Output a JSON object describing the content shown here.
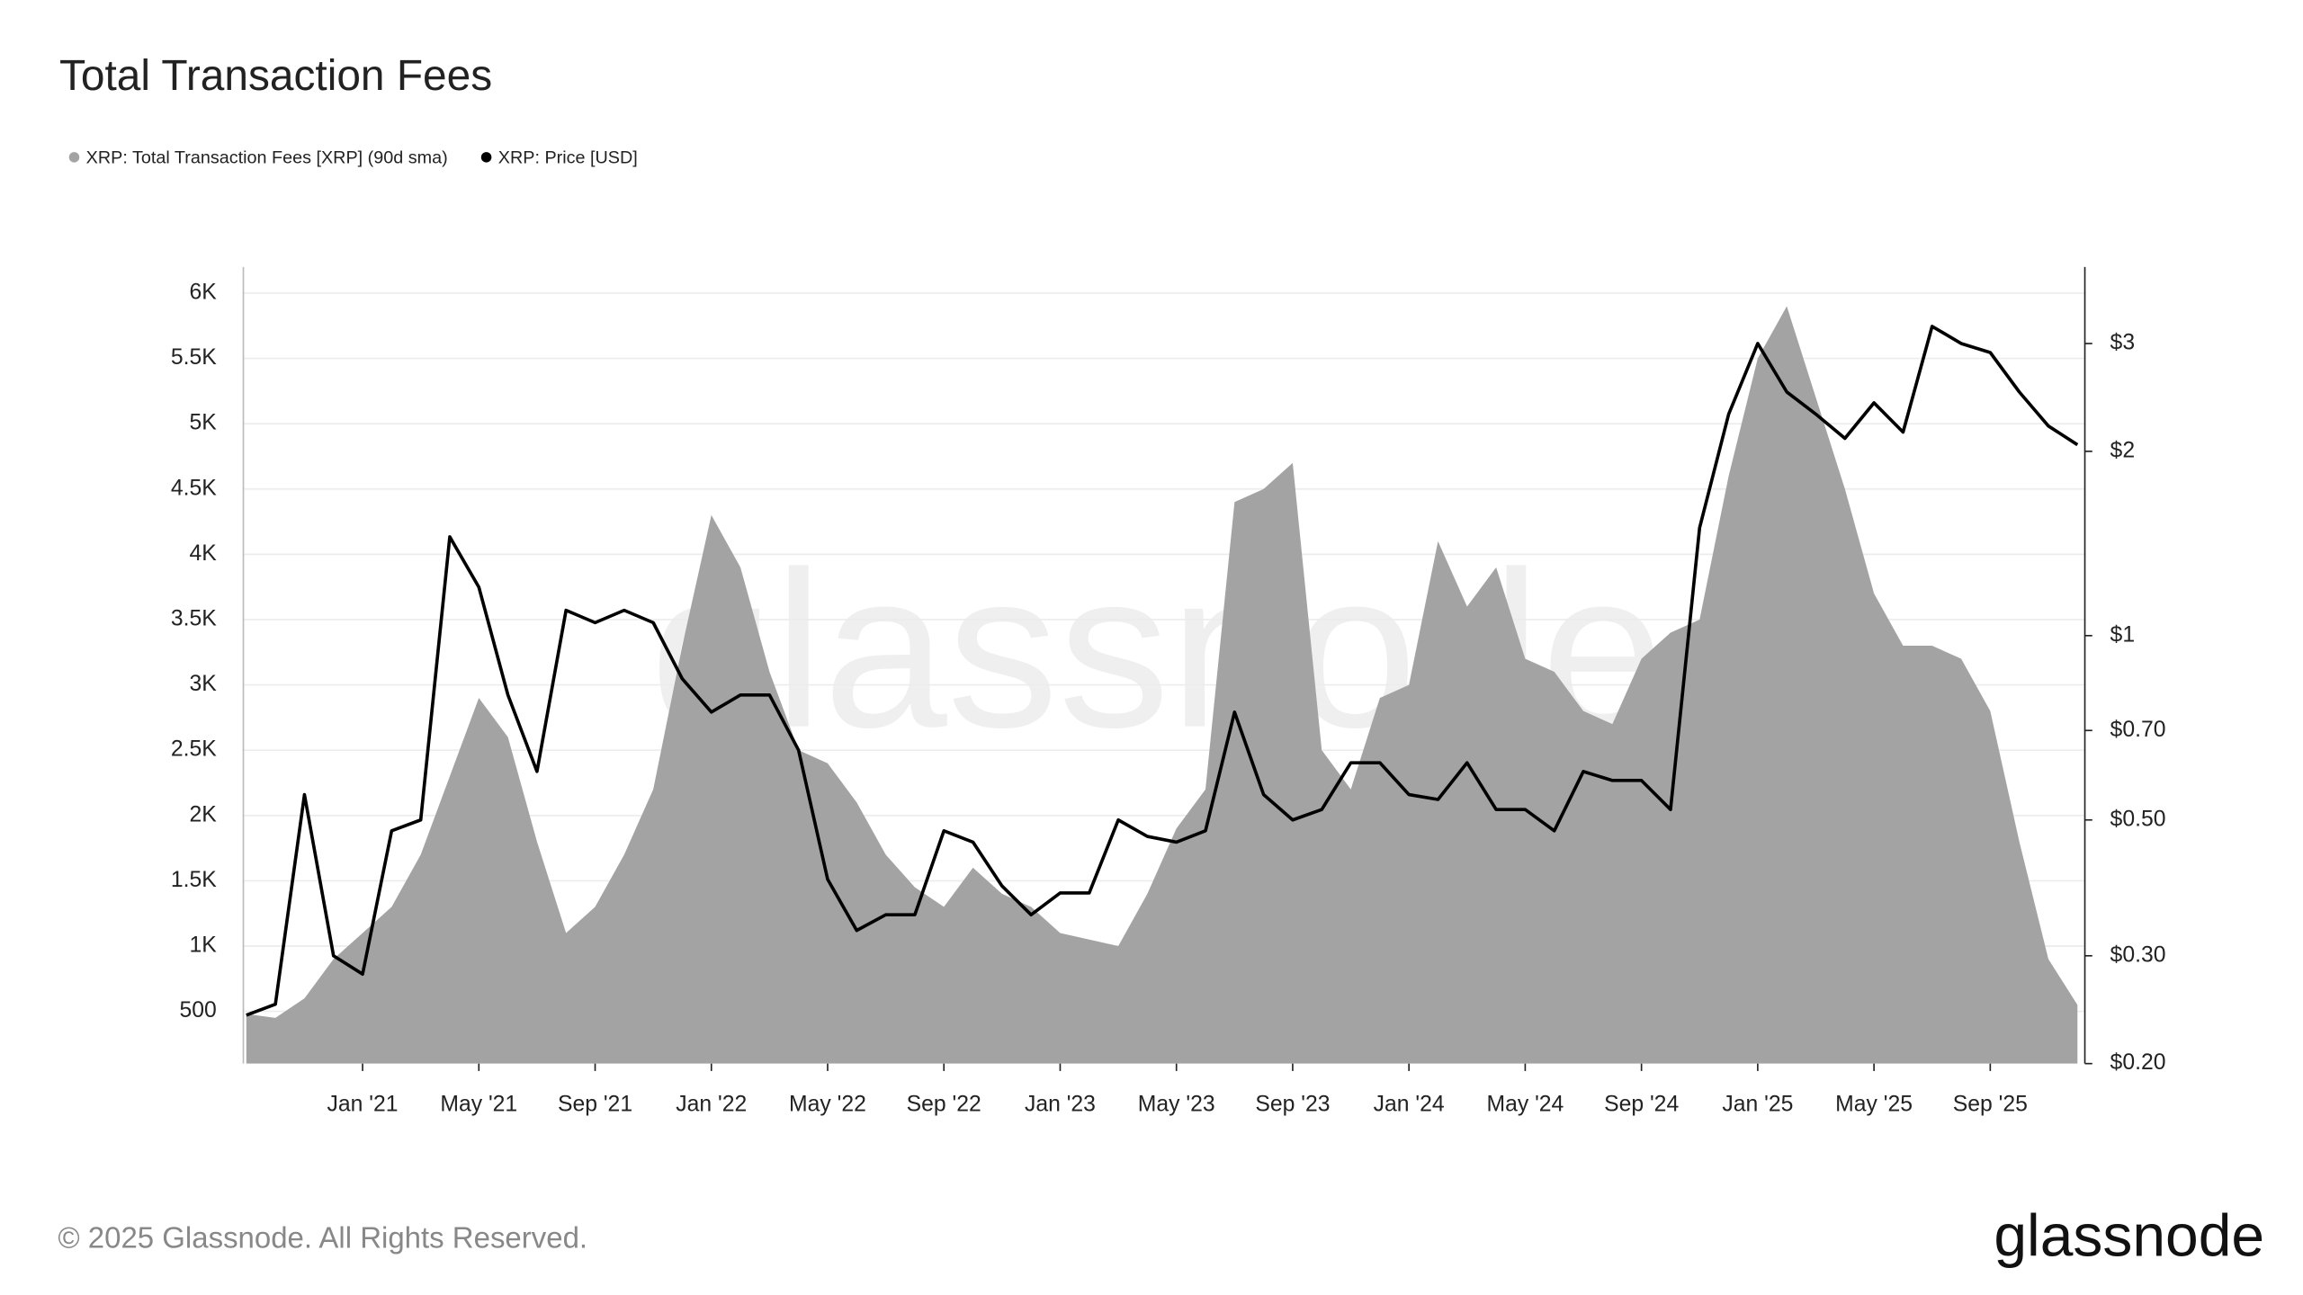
{
  "chart_data": {
    "type": "combo",
    "title": "Total Transaction Fees",
    "watermark": "glassnode",
    "footer": "© 2025 Glassnode. All Rights Reserved.",
    "logo": "glassnode",
    "x": [
      "2020-09",
      "2020-10",
      "2020-11",
      "2020-12",
      "2021-01",
      "2021-02",
      "2021-03",
      "2021-04",
      "2021-05",
      "2021-06",
      "2021-07",
      "2021-08",
      "2021-09",
      "2021-10",
      "2021-11",
      "2021-12",
      "2022-01",
      "2022-02",
      "2022-03",
      "2022-04",
      "2022-05",
      "2022-06",
      "2022-07",
      "2022-08",
      "2022-09",
      "2022-10",
      "2022-11",
      "2022-12",
      "2023-01",
      "2023-02",
      "2023-03",
      "2023-04",
      "2023-05",
      "2023-06",
      "2023-07",
      "2023-08",
      "2023-09",
      "2023-10",
      "2023-11",
      "2023-12",
      "2024-01",
      "2024-02",
      "2024-03",
      "2024-04",
      "2024-05",
      "2024-06",
      "2024-07",
      "2024-08",
      "2024-09",
      "2024-10",
      "2024-11",
      "2024-12",
      "2025-01",
      "2025-02",
      "2025-03",
      "2025-04",
      "2025-05",
      "2025-06",
      "2025-07",
      "2025-08",
      "2025-09",
      "2025-10",
      "2025-11",
      "2025-12"
    ],
    "xlim": [
      "2020-09",
      "2025-12"
    ],
    "xticks": [
      {
        "value": "2021-01",
        "label": "Jan '21"
      },
      {
        "value": "2021-05",
        "label": "May '21"
      },
      {
        "value": "2021-09",
        "label": "Sep '21"
      },
      {
        "value": "2022-01",
        "label": "Jan '22"
      },
      {
        "value": "2022-05",
        "label": "May '22"
      },
      {
        "value": "2022-09",
        "label": "Sep '22"
      },
      {
        "value": "2023-01",
        "label": "Jan '23"
      },
      {
        "value": "2023-05",
        "label": "May '23"
      },
      {
        "value": "2023-09",
        "label": "Sep '23"
      },
      {
        "value": "2024-01",
        "label": "Jan '24"
      },
      {
        "value": "2024-05",
        "label": "May '24"
      },
      {
        "value": "2024-09",
        "label": "Sep '24"
      },
      {
        "value": "2025-01",
        "label": "Jan '25"
      },
      {
        "value": "2025-05",
        "label": "May '25"
      },
      {
        "value": "2025-09",
        "label": "Sep '25"
      }
    ],
    "ylim": [
      100,
      6200
    ],
    "yticks": [
      500,
      {
        "value": 1000,
        "label": "1K"
      },
      {
        "value": 1500,
        "label": "1.5K"
      },
      {
        "value": 2000,
        "label": "2K"
      },
      {
        "value": 2500,
        "label": "2.5K"
      },
      {
        "value": 3000,
        "label": "3K"
      },
      {
        "value": 3500,
        "label": "3.5K"
      },
      {
        "value": 4000,
        "label": "4K"
      },
      {
        "value": 4500,
        "label": "4.5K"
      },
      {
        "value": 5000,
        "label": "5K"
      },
      {
        "value": 5500,
        "label": "5.5K"
      },
      {
        "value": 6000,
        "label": "6K"
      }
    ],
    "y2lim": [
      0.2,
      4
    ],
    "y2log": true,
    "y2ticks": [
      {
        "value": 0.2,
        "label": "$0.20"
      },
      {
        "value": 0.3,
        "label": "$0.30"
      },
      {
        "value": 0.5,
        "label": "$0.50"
      },
      {
        "value": 0.7,
        "label": "$0.70"
      },
      {
        "value": 1,
        "label": "$1"
      },
      {
        "value": 2,
        "label": "$2"
      },
      {
        "value": 3,
        "label": "$3"
      }
    ],
    "grid": true,
    "series": [
      {
        "name": "XRP: Total Transaction Fees [XRP] (90d sma)",
        "type": "area",
        "color": "#a3a3a3",
        "values": [
          480,
          450,
          600,
          900,
          1100,
          1300,
          1700,
          2300,
          2900,
          2600,
          1800,
          1100,
          1300,
          1700,
          2200,
          3300,
          4300,
          3900,
          3100,
          2500,
          2400,
          2100,
          1700,
          1450,
          1300,
          1600,
          1400,
          1300,
          1100,
          1050,
          1000,
          1400,
          1900,
          2200,
          4400,
          4500,
          4700,
          2500,
          2200,
          2900,
          3000,
          4100,
          3600,
          3900,
          3200,
          3100,
          2800,
          2700,
          3200,
          3400,
          3500,
          4600,
          5500,
          5900,
          5200,
          4500,
          3700,
          3300,
          3300,
          3200,
          2800,
          1800,
          900,
          550
        ]
      },
      {
        "name": "XRP: Price [USD]",
        "type": "line",
        "axis": "y2",
        "color": "#000000",
        "values": [
          0.24,
          0.25,
          0.55,
          0.3,
          0.28,
          0.48,
          0.5,
          1.45,
          1.2,
          0.8,
          0.6,
          1.1,
          1.05,
          1.1,
          1.05,
          0.85,
          0.75,
          0.8,
          0.8,
          0.65,
          0.4,
          0.33,
          0.35,
          0.35,
          0.48,
          0.46,
          0.39,
          0.35,
          0.38,
          0.38,
          0.5,
          0.47,
          0.46,
          0.48,
          0.75,
          0.55,
          0.5,
          0.52,
          0.62,
          0.62,
          0.55,
          0.54,
          0.62,
          0.52,
          0.52,
          0.48,
          0.6,
          0.58,
          0.58,
          0.52,
          1.5,
          2.3,
          3.0,
          2.5,
          2.3,
          2.1,
          2.4,
          2.15,
          3.2,
          3.0,
          2.9,
          2.5,
          2.2,
          2.05
        ]
      }
    ]
  }
}
